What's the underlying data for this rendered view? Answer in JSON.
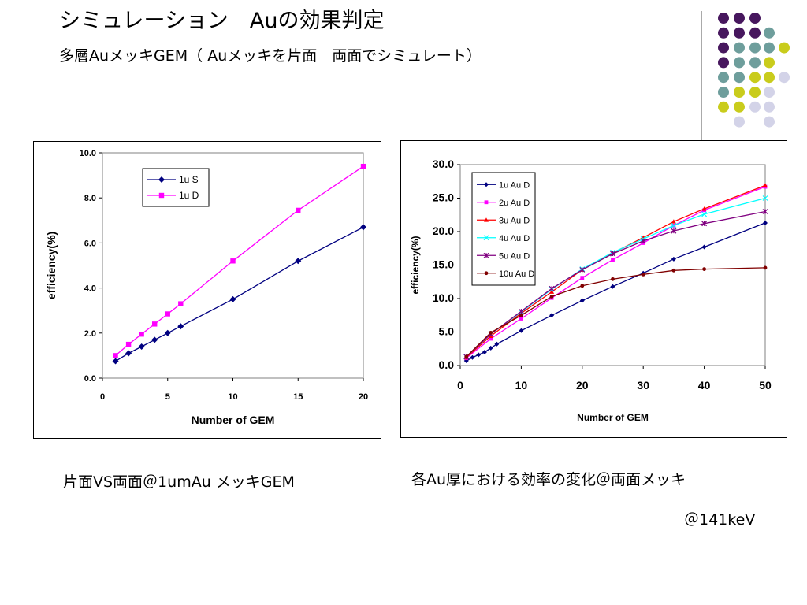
{
  "title": "シミュレーション　Auの効果判定",
  "subtitle": "多層AuメッキGEM（ Auメッキを片面　両面でシミュレート）",
  "captions": {
    "left": "片面VS両面＠1umAu メッキGEM",
    "right": "各Au厚における効率の変化＠両面メッキ",
    "energy": "＠141keV"
  },
  "colors": {
    "purple": "#47175e",
    "teal": "#6e9e9c",
    "yellow": "#c9cc1c",
    "lavender": "#d3d3e8"
  },
  "chart_data": [
    {
      "type": "line",
      "xlabel": "Number of GEM",
      "ylabel": "efficiency(%)",
      "xlim": [
        0,
        20
      ],
      "ylim": [
        0,
        10
      ],
      "xticks": [
        0,
        5,
        10,
        15,
        20
      ],
      "yticks": [
        "0.0",
        "2.0",
        "4.0",
        "6.0",
        "8.0",
        "10.0"
      ],
      "grid": false,
      "legend_position": "top-center",
      "series": [
        {
          "name": "1u S",
          "color": "#000080",
          "marker": "diamond",
          "x": [
            1,
            2,
            3,
            4,
            5,
            6,
            10,
            15,
            20
          ],
          "y": [
            0.75,
            1.1,
            1.4,
            1.7,
            2.0,
            2.3,
            3.5,
            5.2,
            6.7
          ]
        },
        {
          "name": "1u D",
          "color": "#ff00ff",
          "marker": "square",
          "x": [
            1,
            2,
            3,
            4,
            5,
            6,
            10,
            15,
            20
          ],
          "y": [
            1.0,
            1.5,
            1.95,
            2.4,
            2.85,
            3.3,
            5.2,
            7.45,
            9.4
          ]
        }
      ]
    },
    {
      "type": "line",
      "xlabel": "Number of GEM",
      "ylabel": "efficiency(%)",
      "xlim": [
        0,
        50
      ],
      "ylim": [
        0,
        30
      ],
      "xticks": [
        0,
        10,
        20,
        30,
        40,
        50
      ],
      "yticks": [
        "0.0",
        "5.0",
        "10.0",
        "15.0",
        "20.0",
        "25.0",
        "30.0"
      ],
      "grid": false,
      "legend_position": "top-left",
      "series": [
        {
          "name": "1u Au D",
          "color": "#000080",
          "marker": "diamond",
          "x": [
            1,
            2,
            3,
            4,
            5,
            6,
            10,
            15,
            20,
            25,
            30,
            35,
            40,
            50
          ],
          "y": [
            0.7,
            1.2,
            1.6,
            2.0,
            2.6,
            3.2,
            5.2,
            7.5,
            9.7,
            11.8,
            13.8,
            15.9,
            17.7,
            21.3
          ]
        },
        {
          "name": "2u Au D",
          "color": "#ff00ff",
          "marker": "square",
          "x": [
            1,
            5,
            10,
            15,
            20,
            25,
            30,
            35,
            40,
            50
          ],
          "y": [
            1.1,
            4.0,
            7.0,
            10.1,
            13.1,
            15.8,
            18.3,
            20.9,
            23.2,
            26.7
          ]
        },
        {
          "name": "3u Au D",
          "color": "#ff0000",
          "marker": "triangle",
          "x": [
            1,
            5,
            10,
            15,
            20,
            25,
            30,
            35,
            40,
            50
          ],
          "y": [
            1.2,
            4.4,
            7.8,
            11.0,
            14.3,
            16.8,
            19.1,
            21.5,
            23.4,
            26.9
          ]
        },
        {
          "name": "4u Au D",
          "color": "#00ffff",
          "marker": "x",
          "x": [
            1,
            5,
            10,
            15,
            20,
            25,
            30,
            35,
            40,
            50
          ],
          "y": [
            1.3,
            4.7,
            8.0,
            11.4,
            14.4,
            16.9,
            18.9,
            20.9,
            22.6,
            25.0
          ]
        },
        {
          "name": "5u Au D",
          "color": "#800080",
          "marker": "star",
          "x": [
            1,
            5,
            10,
            15,
            20,
            25,
            30,
            35,
            40,
            50
          ],
          "y": [
            1.3,
            4.7,
            8.1,
            11.5,
            14.3,
            16.7,
            18.6,
            20.1,
            21.2,
            23.0
          ]
        },
        {
          "name": "10u Au D",
          "color": "#800000",
          "marker": "circle",
          "x": [
            1,
            5,
            10,
            15,
            20,
            25,
            30,
            35,
            40,
            50
          ],
          "y": [
            1.3,
            4.9,
            7.5,
            10.3,
            11.9,
            12.9,
            13.6,
            14.2,
            14.4,
            14.6
          ]
        }
      ]
    }
  ]
}
